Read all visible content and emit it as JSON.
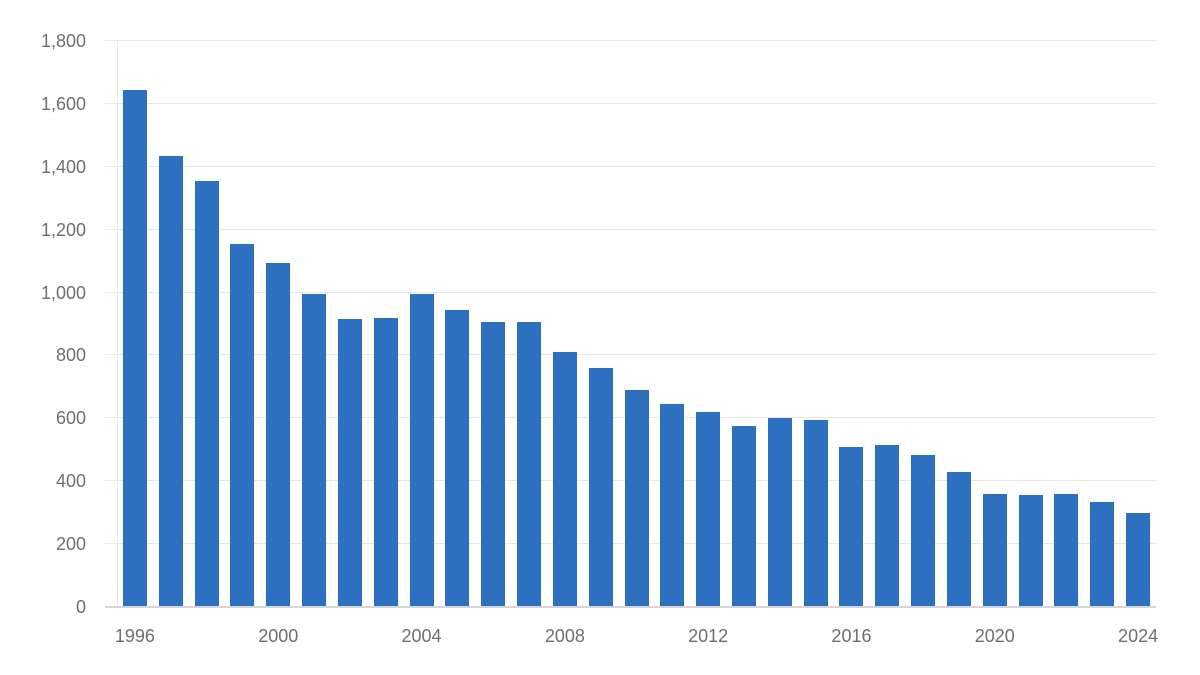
{
  "chart_data": {
    "type": "bar",
    "categories": [
      1996,
      1997,
      1998,
      1999,
      2000,
      2001,
      2002,
      2003,
      2004,
      2005,
      2006,
      2007,
      2008,
      2009,
      2010,
      2011,
      2012,
      2013,
      2014,
      2015,
      2016,
      2017,
      2018,
      2019,
      2020,
      2021,
      2022,
      2023,
      2024
    ],
    "values": [
      1645,
      1435,
      1355,
      1155,
      1095,
      995,
      915,
      920,
      995,
      945,
      905,
      905,
      810,
      760,
      690,
      645,
      620,
      575,
      600,
      595,
      510,
      515,
      485,
      430,
      360,
      355,
      360,
      335,
      300
    ],
    "xlabel": "",
    "ylabel": "",
    "ylim": [
      0,
      1800
    ],
    "ytick_values": [
      0,
      200,
      400,
      600,
      800,
      1000,
      1200,
      1400,
      1600,
      1800
    ],
    "ytick_labels": [
      "0",
      "200",
      "400",
      "600",
      "800",
      "1,000",
      "1,200",
      "1,400",
      "1,600",
      "1,800"
    ],
    "xtick_labels": [
      "1996",
      "2000",
      "2004",
      "2008",
      "2012",
      "2016",
      "2020",
      "2024"
    ],
    "grid": true,
    "legend_position": "none",
    "colors": {
      "bar": "#2E70C0",
      "gridline": "#E7E7E7",
      "baseline": "#D6D6D6",
      "axis_label": "#6F6F6F",
      "background": "#FFFFFF"
    }
  }
}
